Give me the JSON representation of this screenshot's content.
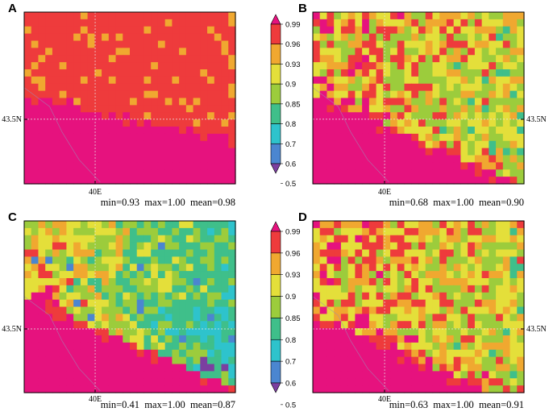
{
  "colors": {
    "scale": [
      "#7b3fa0",
      "#4b86d0",
      "#2ec3cc",
      "#3fbf8a",
      "#9ccc3c",
      "#e4df3a",
      "#f0a830",
      "#ee3b3c",
      "#e6127e"
    ],
    "grid": "#e8e8e8",
    "border": "#000000"
  },
  "chart_data": {
    "type": "heatmap",
    "colorbar": {
      "labels": [
        "0.99",
        "0.96",
        "0.93",
        "0.9",
        "0.85",
        "0.8",
        "0.7",
        "0.6",
        "0.5"
      ],
      "levels": [
        0.5,
        0.6,
        0.7,
        0.8,
        0.85,
        0.9,
        0.93,
        0.96,
        0.99
      ]
    },
    "panels": [
      {
        "letter": "A",
        "xtick": "40E",
        "ytick": "43.5N",
        "ytick_side": "left",
        "stats": "min=0.93  max=1.00  mean=0.98",
        "min": 0.93,
        "max": 1.0,
        "mean": 0.98
      },
      {
        "letter": "B",
        "xtick": "40E",
        "ytick": "43.5N",
        "ytick_side": "right",
        "stats": "min=0.68  max=1.00  mean=0.90",
        "min": 0.68,
        "max": 1.0,
        "mean": 0.9
      },
      {
        "letter": "C",
        "xtick": "40E",
        "ytick": "43.5N",
        "ytick_side": "left",
        "stats": "min=0.41  max=1.00  mean=0.87",
        "min": 0.41,
        "max": 1.0,
        "mean": 0.87
      },
      {
        "letter": "D",
        "xtick": "40E",
        "ytick": "43.5N",
        "ytick_side": "right",
        "stats": "min=0.63  max=1.00  mean=0.91",
        "min": 0.63,
        "max": 1.0,
        "mean": 0.91
      }
    ]
  }
}
